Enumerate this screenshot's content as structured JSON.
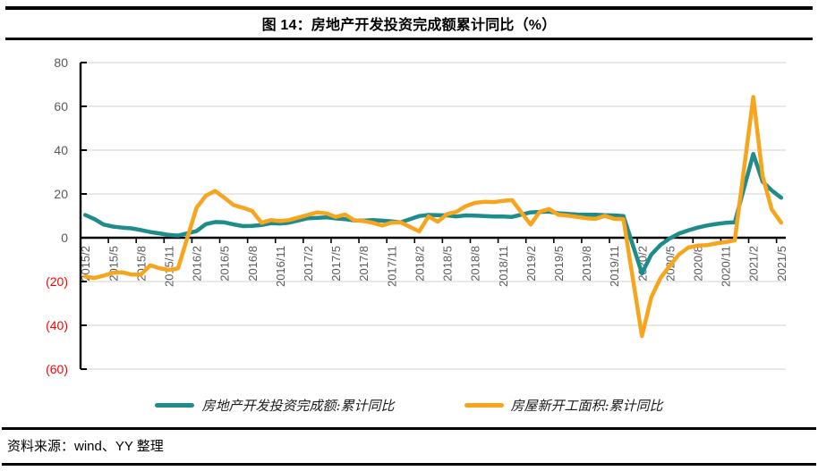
{
  "header": {
    "title": "图 14：房地产开发投资完成额累计同比（%）"
  },
  "footer": {
    "source": "资料来源：wind、YY 整理"
  },
  "chart_data": {
    "type": "line",
    "title": "图 14：房地产开发投资完成额累计同比（%）",
    "ylim": [
      -60,
      80
    ],
    "grid": true,
    "legend_position": "bottom",
    "colors": {
      "axis": "#000000",
      "grid": "#D9D9D9",
      "tick_label": "#595959",
      "negative_tick_label": "#FF0000",
      "series_investment": "#1F8C8C",
      "series_newstarts": "#F8A51E"
    },
    "y_ticks": [
      {
        "value": 80,
        "label": "80"
      },
      {
        "value": 60,
        "label": "60"
      },
      {
        "value": 40,
        "label": "40"
      },
      {
        "value": 20,
        "label": "20"
      },
      {
        "value": 0,
        "label": "0"
      },
      {
        "value": -20,
        "label": "(20)"
      },
      {
        "value": -40,
        "label": "(40)"
      },
      {
        "value": -60,
        "label": "(60)"
      }
    ],
    "x_tick_labels": [
      "2015/2",
      "2015/5",
      "2015/8",
      "2015/11",
      "2016/2",
      "2016/5",
      "2016/8",
      "2016/11",
      "2017/2",
      "2017/5",
      "2017/8",
      "2017/11",
      "2018/2",
      "2018/5",
      "2018/8",
      "2018/11",
      "2019/2",
      "2019/5",
      "2019/8",
      "2019/11",
      "2020/2",
      "2020/5",
      "2020/8",
      "2020/11",
      "2021/2",
      "2021/5"
    ],
    "series": [
      {
        "name": "房地产开发投资完成额:累计同比",
        "color": "#1F8C8C",
        "points": [
          [
            "2015/2",
            10.4
          ],
          [
            "2015/3",
            8.5
          ],
          [
            "2015/4",
            6.0
          ],
          [
            "2015/5",
            5.1
          ],
          [
            "2015/6",
            4.6
          ],
          [
            "2015/7",
            4.3
          ],
          [
            "2015/8",
            3.5
          ],
          [
            "2015/9",
            2.6
          ],
          [
            "2015/10",
            2.0
          ],
          [
            "2015/11",
            1.3
          ],
          [
            "2015/12",
            1.0
          ],
          [
            "2016/2",
            3.0
          ],
          [
            "2016/3",
            6.2
          ],
          [
            "2016/4",
            7.2
          ],
          [
            "2016/5",
            7.0
          ],
          [
            "2016/6",
            6.1
          ],
          [
            "2016/7",
            5.3
          ],
          [
            "2016/8",
            5.4
          ],
          [
            "2016/9",
            5.8
          ],
          [
            "2016/10",
            6.6
          ],
          [
            "2016/11",
            6.5
          ],
          [
            "2016/12",
            6.9
          ],
          [
            "2017/2",
            8.9
          ],
          [
            "2017/3",
            9.1
          ],
          [
            "2017/4",
            9.3
          ],
          [
            "2017/5",
            8.8
          ],
          [
            "2017/6",
            8.5
          ],
          [
            "2017/7",
            7.9
          ],
          [
            "2017/8",
            7.8
          ],
          [
            "2017/9",
            8.1
          ],
          [
            "2017/10",
            7.8
          ],
          [
            "2017/11",
            7.5
          ],
          [
            "2017/12",
            7.0
          ],
          [
            "2018/2",
            9.9
          ],
          [
            "2018/3",
            10.4
          ],
          [
            "2018/4",
            10.3
          ],
          [
            "2018/5",
            10.2
          ],
          [
            "2018/6",
            9.7
          ],
          [
            "2018/7",
            10.2
          ],
          [
            "2018/8",
            10.1
          ],
          [
            "2018/9",
            9.9
          ],
          [
            "2018/10",
            9.7
          ],
          [
            "2018/11",
            9.7
          ],
          [
            "2018/12",
            9.5
          ],
          [
            "2019/2",
            11.6
          ],
          [
            "2019/3",
            11.8
          ],
          [
            "2019/4",
            11.9
          ],
          [
            "2019/5",
            11.2
          ],
          [
            "2019/6",
            10.9
          ],
          [
            "2019/7",
            10.6
          ],
          [
            "2019/8",
            10.5
          ],
          [
            "2019/9",
            10.5
          ],
          [
            "2019/10",
            10.3
          ],
          [
            "2019/11",
            10.2
          ],
          [
            "2019/12",
            9.9
          ],
          [
            "2020/2",
            -16.3
          ],
          [
            "2020/3",
            -7.7
          ],
          [
            "2020/4",
            -3.3
          ],
          [
            "2020/5",
            -0.3
          ],
          [
            "2020/6",
            1.9
          ],
          [
            "2020/7",
            3.4
          ],
          [
            "2020/8",
            4.6
          ],
          [
            "2020/9",
            5.6
          ],
          [
            "2020/10",
            6.3
          ],
          [
            "2020/11",
            6.8
          ],
          [
            "2020/12",
            7.0
          ],
          [
            "2021/2",
            38.3
          ],
          [
            "2021/3",
            25.6
          ],
          [
            "2021/4",
            21.6
          ],
          [
            "2021/5",
            18.3
          ]
        ]
      },
      {
        "name": "房屋新开工面积:累计同比",
        "color": "#F8A51E",
        "points": [
          [
            "2015/2",
            -17.7
          ],
          [
            "2015/3",
            -18.4
          ],
          [
            "2015/4",
            -17.3
          ],
          [
            "2015/5",
            -16.0
          ],
          [
            "2015/6",
            -15.8
          ],
          [
            "2015/7",
            -16.8
          ],
          [
            "2015/8",
            -16.8
          ],
          [
            "2015/9",
            -12.6
          ],
          [
            "2015/10",
            -13.9
          ],
          [
            "2015/11",
            -14.7
          ],
          [
            "2015/12",
            -14.0
          ],
          [
            "2016/2",
            13.7
          ],
          [
            "2016/3",
            19.2
          ],
          [
            "2016/4",
            21.4
          ],
          [
            "2016/5",
            18.3
          ],
          [
            "2016/6",
            14.9
          ],
          [
            "2016/7",
            13.7
          ],
          [
            "2016/8",
            12.2
          ],
          [
            "2016/9",
            6.8
          ],
          [
            "2016/10",
            8.1
          ],
          [
            "2016/11",
            7.6
          ],
          [
            "2016/12",
            8.1
          ],
          [
            "2017/2",
            10.4
          ],
          [
            "2017/3",
            11.6
          ],
          [
            "2017/4",
            11.1
          ],
          [
            "2017/5",
            9.5
          ],
          [
            "2017/6",
            10.6
          ],
          [
            "2017/7",
            8.0
          ],
          [
            "2017/8",
            7.6
          ],
          [
            "2017/9",
            6.8
          ],
          [
            "2017/10",
            5.6
          ],
          [
            "2017/11",
            6.9
          ],
          [
            "2017/12",
            7.0
          ],
          [
            "2018/2",
            2.9
          ],
          [
            "2018/3",
            9.7
          ],
          [
            "2018/4",
            7.3
          ],
          [
            "2018/5",
            10.8
          ],
          [
            "2018/6",
            11.8
          ],
          [
            "2018/7",
            14.4
          ],
          [
            "2018/8",
            15.9
          ],
          [
            "2018/9",
            16.4
          ],
          [
            "2018/10",
            16.3
          ],
          [
            "2018/11",
            16.8
          ],
          [
            "2018/12",
            17.2
          ],
          [
            "2019/2",
            6.0
          ],
          [
            "2019/3",
            11.9
          ],
          [
            "2019/4",
            13.1
          ],
          [
            "2019/5",
            10.5
          ],
          [
            "2019/6",
            10.1
          ],
          [
            "2019/7",
            9.5
          ],
          [
            "2019/8",
            8.9
          ],
          [
            "2019/9",
            8.6
          ],
          [
            "2019/10",
            10.0
          ],
          [
            "2019/11",
            8.6
          ],
          [
            "2019/12",
            8.5
          ],
          [
            "2020/2",
            -44.9
          ],
          [
            "2020/3",
            -27.2
          ],
          [
            "2020/4",
            -18.4
          ],
          [
            "2020/5",
            -12.8
          ],
          [
            "2020/6",
            -7.6
          ],
          [
            "2020/7",
            -4.5
          ],
          [
            "2020/8",
            -3.6
          ],
          [
            "2020/9",
            -3.4
          ],
          [
            "2020/10",
            -2.6
          ],
          [
            "2020/11",
            -2.0
          ],
          [
            "2020/12",
            -1.2
          ],
          [
            "2021/2",
            64.3
          ],
          [
            "2021/3",
            28.2
          ],
          [
            "2021/4",
            12.8
          ],
          [
            "2021/5",
            6.9
          ]
        ]
      }
    ]
  }
}
